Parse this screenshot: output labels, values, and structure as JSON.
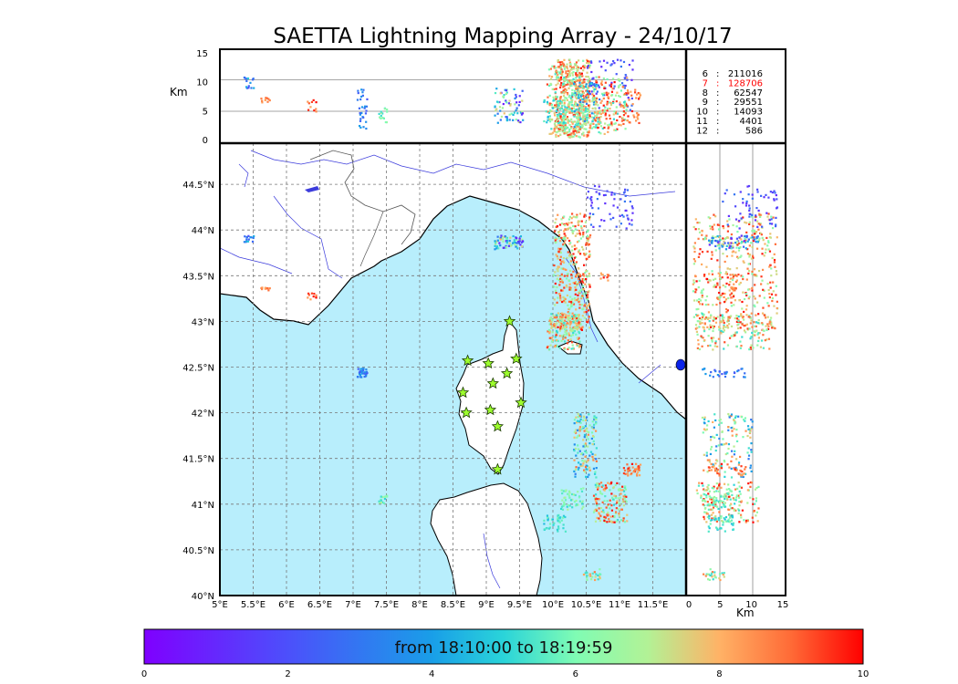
{
  "chart_data": {
    "type": "scatter",
    "title": "SAETTA Lightning Mapping Array - 24/10/17",
    "colorbar_label": "from 18:10:00 to 18:19:59",
    "altitude_unit": "Km",
    "map_x_ticks": [
      "5°E",
      "5.5°E",
      "6°E",
      "6.5°E",
      "7°E",
      "7.5°E",
      "8°E",
      "8.5°E",
      "9°E",
      "9.5°E",
      "10°E",
      "10.5°E",
      "11°E",
      "11.5°E"
    ],
    "map_y_ticks": [
      "40°N",
      "40.5°N",
      "41°N",
      "41.5°N",
      "42°N",
      "42.5°N",
      "43°N",
      "43.5°N",
      "44°N",
      "44.5°N"
    ],
    "alt_ticks": [
      "0",
      "5",
      "10",
      "15"
    ],
    "side_zero_label": "0",
    "colorbar_ticks": [
      "0",
      "2",
      "4",
      "6",
      "8",
      "10"
    ],
    "lon_range": [
      5,
      12
    ],
    "lat_range": [
      40,
      44.95
    ],
    "alt_range": [
      0,
      15
    ],
    "time_range_minutes": [
      0,
      10
    ],
    "counts": [
      {
        "stations": "6",
        "count": "211016",
        "color": "#000000"
      },
      {
        "stations": "7",
        "count": "128706",
        "color": "#ff0000"
      },
      {
        "stations": "8",
        "count": "62547",
        "color": "#000000"
      },
      {
        "stations": "9",
        "count": "29551",
        "color": "#000000"
      },
      {
        "stations": "10",
        "count": "14093",
        "color": "#000000"
      },
      {
        "stations": "11",
        "count": "4401",
        "color": "#000000"
      },
      {
        "stations": "12",
        "count": "586",
        "color": "#000000"
      }
    ],
    "stations": [
      {
        "lon": 9.35,
        "lat": 43.0
      },
      {
        "lon": 8.72,
        "lat": 42.57
      },
      {
        "lon": 9.03,
        "lat": 42.54
      },
      {
        "lon": 9.45,
        "lat": 42.59
      },
      {
        "lon": 9.31,
        "lat": 42.43
      },
      {
        "lon": 9.1,
        "lat": 42.32
      },
      {
        "lon": 8.65,
        "lat": 42.22
      },
      {
        "lon": 9.52,
        "lat": 42.11
      },
      {
        "lon": 8.7,
        "lat": 42.0
      },
      {
        "lon": 9.06,
        "lat": 42.03
      },
      {
        "lon": 9.17,
        "lat": 41.85
      },
      {
        "lon": 9.17,
        "lat": 41.38
      }
    ],
    "clusters": [
      {
        "lon": [
          10.0,
          10.55
        ],
        "lat": [
          42.9,
          44.2
        ],
        "alt": [
          0.5,
          14.0
        ],
        "time": [
          6,
          10
        ],
        "n": 420
      },
      {
        "lon": [
          9.9,
          10.4
        ],
        "lat": [
          42.7,
          43.1
        ],
        "alt": [
          1.0,
          13.0
        ],
        "time": [
          5,
          9.5
        ],
        "n": 160
      },
      {
        "lon": [
          10.5,
          11.2
        ],
        "lat": [
          44.0,
          44.5
        ],
        "alt": [
          5.0,
          14.0
        ],
        "time": [
          1,
          3
        ],
        "n": 60
      },
      {
        "lon": [
          10.3,
          10.65
        ],
        "lat": [
          41.3,
          42.0
        ],
        "alt": [
          2.0,
          10.0
        ],
        "time": [
          3,
          9
        ],
        "n": 140
      },
      {
        "lon": [
          10.6,
          11.1
        ],
        "lat": [
          40.8,
          41.25
        ],
        "alt": [
          1.0,
          11.0
        ],
        "time": [
          5,
          10
        ],
        "n": 150
      },
      {
        "lon": [
          10.1,
          10.45
        ],
        "lat": [
          40.95,
          41.2
        ],
        "alt": [
          2.0,
          8.0
        ],
        "time": [
          5,
          7
        ],
        "n": 50
      },
      {
        "lon": [
          9.85,
          10.2
        ],
        "lat": [
          40.7,
          40.9
        ],
        "alt": [
          3.0,
          7.0
        ],
        "time": [
          4.5,
          6
        ],
        "n": 40
      },
      {
        "lon": [
          11.05,
          11.3
        ],
        "lat": [
          41.32,
          41.45
        ],
        "alt": [
          3.0,
          9.0
        ],
        "time": [
          8,
          10
        ],
        "n": 35
      },
      {
        "lon": [
          10.45,
          10.7
        ],
        "lat": [
          40.18,
          40.3
        ],
        "alt": [
          2.0,
          6.0
        ],
        "time": [
          5,
          9
        ],
        "n": 25
      },
      {
        "lon": [
          9.1,
          9.55
        ],
        "lat": [
          43.8,
          43.95
        ],
        "alt": [
          3.0,
          9.0
        ],
        "time": [
          0.5,
          8
        ],
        "n": 70
      },
      {
        "lon": [
          10.7,
          10.85
        ],
        "lat": [
          43.45,
          43.55
        ],
        "alt": [
          3.0,
          8.0
        ],
        "time": [
          8,
          10
        ],
        "n": 10
      },
      {
        "lon": [
          5.35,
          5.5
        ],
        "lat": [
          43.88,
          43.95
        ],
        "alt": [
          9.0,
          11.0
        ],
        "time": [
          1.5,
          5
        ],
        "n": 15
      },
      {
        "lon": [
          5.6,
          5.75
        ],
        "lat": [
          43.35,
          43.38
        ],
        "alt": [
          6.5,
          8.0
        ],
        "time": [
          8,
          9
        ],
        "n": 10
      },
      {
        "lon": [
          6.3,
          6.45
        ],
        "lat": [
          43.25,
          43.32
        ],
        "alt": [
          5.0,
          7.0
        ],
        "time": [
          8,
          10
        ],
        "n": 10
      },
      {
        "lon": [
          7.05,
          7.2
        ],
        "lat": [
          42.4,
          42.5
        ],
        "alt": [
          2.0,
          9.0
        ],
        "time": [
          2,
          4
        ],
        "n": 30
      },
      {
        "lon": [
          7.35,
          7.5
        ],
        "lat": [
          41.02,
          41.12
        ],
        "alt": [
          3.0,
          6.0
        ],
        "time": [
          5,
          7
        ],
        "n": 15
      }
    ]
  }
}
